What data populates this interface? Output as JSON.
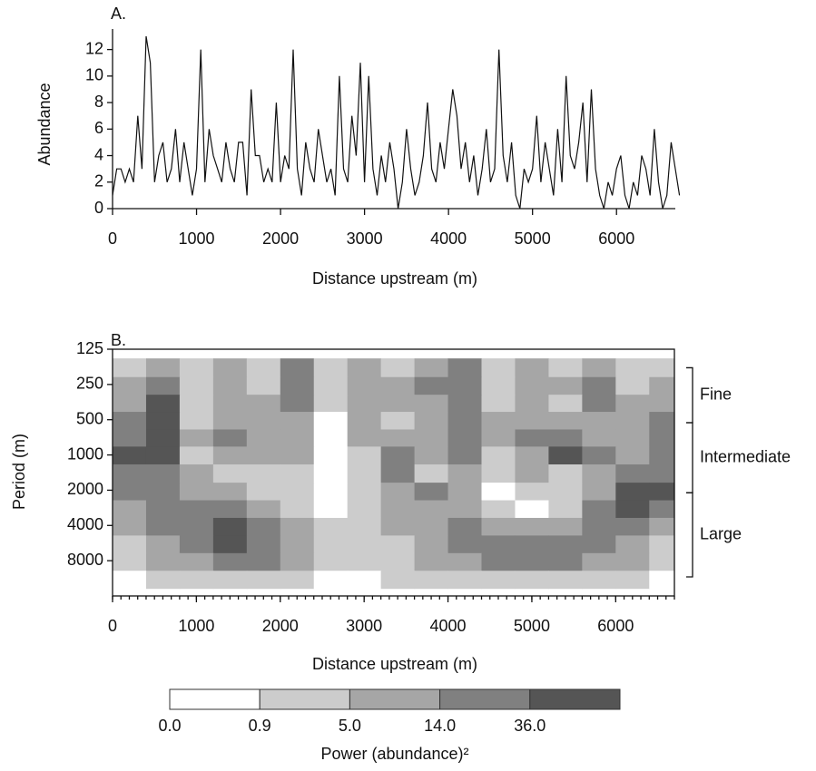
{
  "chart_data": [
    {
      "type": "line",
      "title": "A.",
      "x_label": "Distance upstream (m)",
      "y_label": "Abundance",
      "xlim": [
        0,
        6700
      ],
      "ylim": [
        0,
        13
      ],
      "xticks": [
        0,
        1000,
        2000,
        3000,
        4000,
        5000,
        6000
      ],
      "yticks": [
        0,
        2,
        4,
        6,
        8,
        10,
        12
      ],
      "color": "#111111",
      "x": [
        0,
        50,
        100,
        150,
        200,
        250,
        300,
        350,
        400,
        450,
        500,
        550,
        600,
        650,
        700,
        750,
        800,
        850,
        900,
        950,
        1000,
        1050,
        1100,
        1150,
        1200,
        1250,
        1300,
        1350,
        1400,
        1450,
        1500,
        1550,
        1600,
        1650,
        1700,
        1750,
        1800,
        1850,
        1900,
        1950,
        2000,
        2050,
        2100,
        2150,
        2200,
        2250,
        2300,
        2350,
        2400,
        2450,
        2500,
        2550,
        2600,
        2650,
        2700,
        2750,
        2800,
        2850,
        2900,
        2950,
        3000,
        3050,
        3100,
        3150,
        3200,
        3250,
        3300,
        3350,
        3400,
        3450,
        3500,
        3550,
        3600,
        3650,
        3700,
        3750,
        3800,
        3850,
        3900,
        3950,
        4000,
        4050,
        4100,
        4150,
        4200,
        4250,
        4300,
        4350,
        4400,
        4450,
        4500,
        4550,
        4600,
        4650,
        4700,
        4750,
        4800,
        4850,
        4900,
        4950,
        5000,
        5050,
        5100,
        5150,
        5200,
        5250,
        5300,
        5350,
        5400,
        5450,
        5500,
        5550,
        5600,
        5650,
        5700,
        5750,
        5800,
        5850,
        5900,
        5950,
        6000,
        6050,
        6100,
        6150,
        6200,
        6250,
        6300,
        6350,
        6400,
        6450,
        6500,
        6550,
        6600,
        6650,
        6700,
        6750
      ],
      "values": [
        1,
        3,
        3,
        2,
        3,
        2,
        7,
        3,
        13,
        11,
        2,
        4,
        5,
        2,
        3,
        6,
        2,
        5,
        3,
        1,
        3,
        12,
        2,
        6,
        4,
        3,
        2,
        5,
        3,
        2,
        5,
        5,
        1,
        9,
        4,
        4,
        2,
        3,
        2,
        8,
        2,
        4,
        3,
        12,
        3,
        1,
        5,
        3,
        2,
        6,
        4,
        2,
        3,
        1,
        10,
        3,
        2,
        7,
        4,
        11,
        2,
        10,
        3,
        1,
        4,
        2,
        5,
        3,
        0,
        2,
        6,
        3,
        1,
        2,
        4,
        8,
        3,
        2,
        5,
        3,
        6,
        9,
        7,
        3,
        5,
        2,
        4,
        1,
        3,
        6,
        2,
        3,
        12,
        4,
        2,
        5,
        1,
        0,
        3,
        2,
        3,
        7,
        2,
        5,
        3,
        1,
        6,
        2,
        10,
        4,
        3,
        5,
        8,
        2,
        9,
        3,
        1,
        0,
        2,
        1,
        3,
        4,
        1,
        0,
        2,
        1,
        4,
        3,
        1,
        6,
        2,
        0,
        1,
        5,
        3,
        1
      ]
    },
    {
      "type": "contour",
      "title": "B.",
      "x_label": "Distance upstream (m)",
      "y_label": "Period (m)",
      "xlim": [
        0,
        6700
      ],
      "ylim": [
        125,
        16000
      ],
      "yscale": "log",
      "y_inverted": true,
      "xticks": [
        0,
        1000,
        2000,
        3000,
        4000,
        5000,
        6000
      ],
      "yticks": [
        125,
        250,
        500,
        1000,
        2000,
        4000,
        8000
      ],
      "x": [
        200,
        600,
        1000,
        1400,
        1800,
        2200,
        2600,
        3000,
        3400,
        3800,
        4200,
        4600,
        5000,
        5400,
        5800,
        6200,
        6600
      ],
      "y": [
        180,
        260,
        360,
        510,
        720,
        1000,
        1450,
        2050,
        2900,
        4100,
        5800,
        8200,
        11600
      ],
      "z": [
        [
          3,
          9,
          3,
          9,
          3,
          20,
          3,
          9,
          3,
          9,
          20,
          3,
          9,
          3,
          9,
          3,
          3
        ],
        [
          9,
          20,
          3,
          9,
          3,
          20,
          3,
          9,
          9,
          20,
          20,
          3,
          9,
          9,
          20,
          3,
          9
        ],
        [
          9,
          50,
          3,
          9,
          9,
          20,
          3,
          9,
          9,
          9,
          20,
          3,
          9,
          3,
          20,
          9,
          9
        ],
        [
          20,
          50,
          3,
          9,
          9,
          9,
          0.5,
          9,
          3,
          9,
          20,
          9,
          9,
          9,
          9,
          9,
          20
        ],
        [
          20,
          50,
          9,
          20,
          9,
          9,
          0.5,
          9,
          9,
          9,
          20,
          9,
          20,
          20,
          9,
          9,
          20
        ],
        [
          50,
          50,
          3,
          9,
          9,
          9,
          0.5,
          3,
          20,
          9,
          20,
          3,
          9,
          50,
          20,
          9,
          20
        ],
        [
          20,
          20,
          9,
          3,
          3,
          3,
          0.5,
          3,
          20,
          3,
          9,
          3,
          9,
          3,
          9,
          20,
          20
        ],
        [
          20,
          20,
          9,
          9,
          3,
          3,
          0.5,
          3,
          9,
          20,
          9,
          0.5,
          3,
          3,
          9,
          50,
          50
        ],
        [
          9,
          20,
          20,
          20,
          9,
          3,
          0.5,
          3,
          9,
          9,
          9,
          3,
          0.5,
          3,
          20,
          50,
          20
        ],
        [
          9,
          20,
          20,
          50,
          20,
          9,
          3,
          3,
          9,
          9,
          20,
          9,
          9,
          9,
          20,
          20,
          9
        ],
        [
          3,
          9,
          20,
          50,
          20,
          9,
          3,
          3,
          3,
          9,
          20,
          20,
          20,
          20,
          20,
          9,
          3
        ],
        [
          3,
          9,
          9,
          20,
          20,
          9,
          3,
          3,
          3,
          9,
          9,
          20,
          20,
          20,
          9,
          9,
          3
        ],
        [
          0.5,
          3,
          3,
          3,
          3,
          3,
          0.5,
          0.5,
          3,
          3,
          3,
          3,
          3,
          3,
          3,
          3,
          0.5
        ]
      ],
      "levels": [
        {
          "value": 0,
          "label": "0.0"
        },
        0.9,
        {
          "value": 5,
          "label": "5.0"
        },
        {
          "value": 14,
          "label": "14.0"
        },
        {
          "value": 36,
          "label": "36.0"
        }
      ],
      "colors": [
        "#ffffff",
        "#cccccc",
        "#a6a6a6",
        "#808080",
        "#555555"
      ],
      "colorbar_label": "Power (abundance)²",
      "bands": [
        {
          "label": "Fine",
          "range": [
            180,
            530
          ]
        },
        {
          "label": "Intermediate",
          "range": [
            530,
            2100
          ]
        },
        {
          "label": "Large",
          "range": [
            2100,
            11000
          ]
        }
      ]
    }
  ]
}
